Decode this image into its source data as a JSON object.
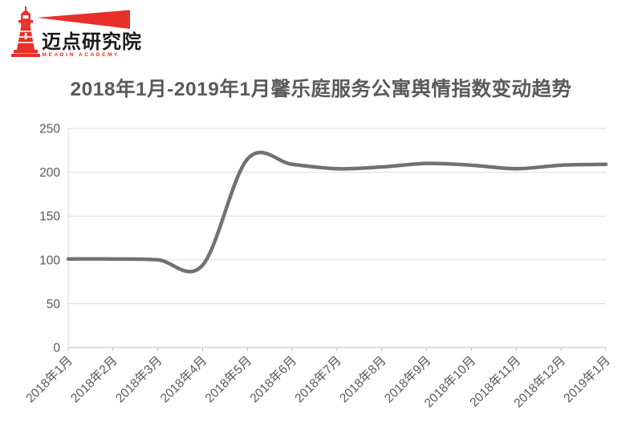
{
  "logo": {
    "brand_name": "迈点研究院",
    "caption": "MEADIN ACADEMY",
    "brand_color": "#e8302a",
    "text_color": "#1a1a1a"
  },
  "chart_data": {
    "type": "line",
    "title": "2018年1月-2019年1月馨乐庭服务公寓舆情指数变动趋势",
    "xlabel": "",
    "ylabel": "",
    "categories": [
      "2018年1月",
      "2018年2月",
      "2018年3月",
      "2018年4月",
      "2018年5月",
      "2018年6月",
      "2018年7月",
      "2018年8月",
      "2018年9月",
      "2018年10月",
      "2018年11月",
      "2018年12月",
      "2019年1月"
    ],
    "values": [
      101,
      101,
      100,
      94,
      215,
      209,
      204,
      206,
      210,
      208,
      204,
      208,
      209
    ],
    "ylim": [
      0,
      250
    ],
    "yticks": [
      0,
      50,
      100,
      150,
      200,
      250
    ],
    "grid": true,
    "legend": false,
    "smooth": true,
    "line_color": "#747071",
    "gridline_color": "#dadada",
    "axis_color": "#bfbfbf",
    "label_color": "#595959",
    "title_color": "#595959"
  }
}
